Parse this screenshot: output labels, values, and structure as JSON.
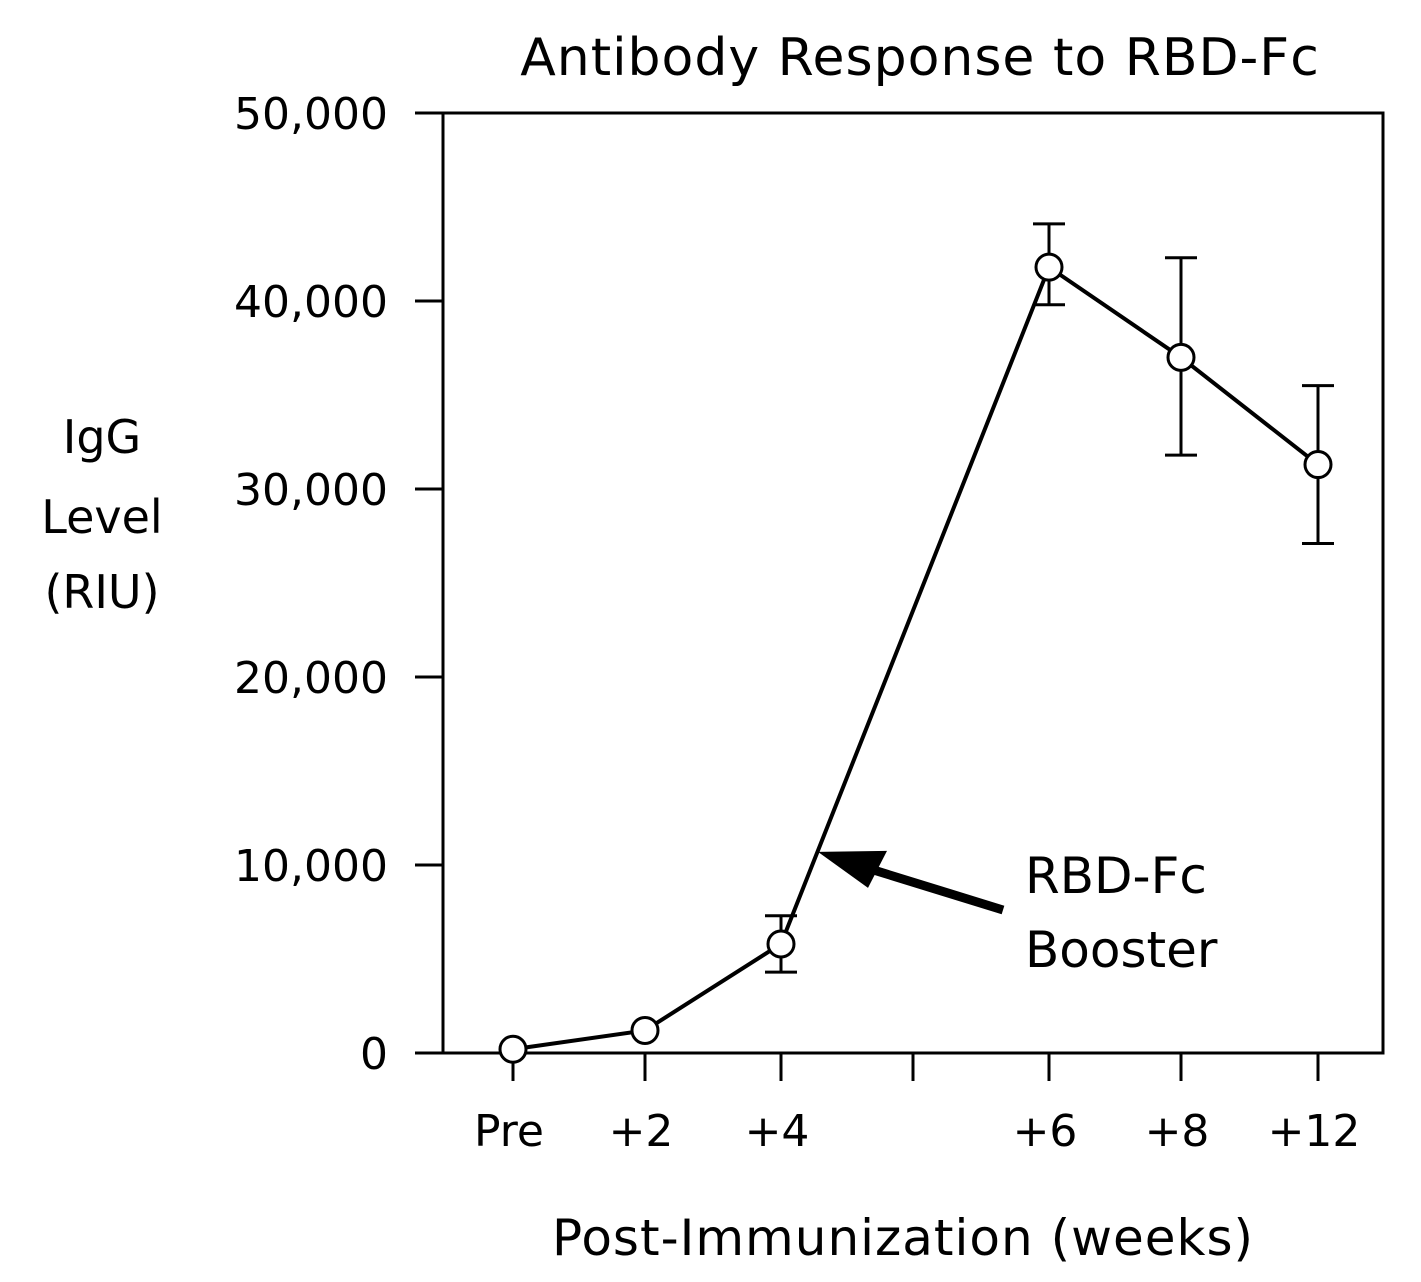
{
  "chart_data": {
    "type": "line",
    "title": "Antibody Response to RBD-Fc",
    "xlabel": "Post-Immunization (weeks)",
    "ylabel_lines": [
      "IgG",
      "Level",
      "(RIU)"
    ],
    "categories": [
      "Pre",
      "+2",
      "+4",
      "",
      "+6",
      "+8",
      "+12"
    ],
    "x_tick_labels": [
      "Pre",
      "+2",
      "+4",
      "+6",
      "+8",
      "+12"
    ],
    "y_tick_labels": [
      "0",
      "10,000",
      "20,000",
      "30,000",
      "40,000",
      "50,000"
    ],
    "ylim": [
      0,
      50000
    ],
    "grid": false,
    "legend": "none",
    "series": [
      {
        "points": [
          {
            "x": "Pre",
            "y": 200,
            "err_low": 200,
            "err_high": 200
          },
          {
            "x": "+2",
            "y": 1200,
            "err_low": 1200,
            "err_high": 1200
          },
          {
            "x": "+4",
            "y": 5800,
            "err_low": 4300,
            "err_high": 7300
          },
          {
            "x": "+6",
            "y": 41800,
            "err_low": 39800,
            "err_high": 44100
          },
          {
            "x": "+8",
            "y": 37000,
            "err_low": 31800,
            "err_high": 42300
          },
          {
            "x": "+12",
            "y": 31300,
            "err_low": 27100,
            "err_high": 35500
          }
        ]
      }
    ],
    "annotation": {
      "lines": [
        "RBD-Fc",
        "Booster"
      ],
      "points_to": {
        "x_between": [
          "+4",
          "+6"
        ],
        "y": 10700
      }
    }
  }
}
